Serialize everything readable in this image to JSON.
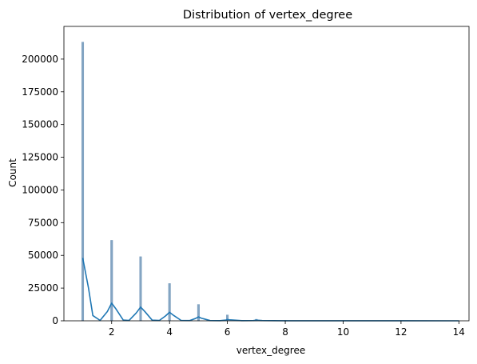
{
  "chart_data": {
    "type": "bar",
    "title": "Distribution of vertex_degree",
    "xlabel": "vertex_degree",
    "ylabel": "Count",
    "xlim": [
      0.35,
      14.35
    ],
    "ylim": [
      0,
      225000
    ],
    "xticks": [
      2,
      4,
      6,
      8,
      10,
      12,
      14
    ],
    "yticks": [
      0,
      25000,
      50000,
      75000,
      100000,
      125000,
      150000,
      175000,
      200000
    ],
    "grid": false,
    "legend": "none",
    "histogram": {
      "x": [
        1,
        2,
        3,
        4,
        5,
        6,
        7,
        8,
        9,
        10,
        11,
        12,
        13,
        14
      ],
      "values": [
        213000,
        61500,
        49000,
        28500,
        12500,
        4500,
        1200,
        300,
        100,
        60,
        40,
        20,
        10,
        5
      ],
      "color": "#6f95b8"
    },
    "kde": {
      "x": [
        1,
        1.2,
        1.35,
        1.6,
        1.85,
        2,
        2.15,
        2.4,
        2.6,
        2.85,
        3,
        3.15,
        3.4,
        3.65,
        3.85,
        4,
        4.15,
        4.4,
        4.7,
        4.9,
        5,
        5.1,
        5.4,
        5.75,
        5.95,
        6,
        6.1,
        6.5,
        6.9,
        7,
        7.2,
        8,
        10,
        12,
        14
      ],
      "y": [
        48000,
        25000,
        4000,
        300,
        7000,
        13500,
        9000,
        600,
        300,
        6000,
        10500,
        7000,
        500,
        300,
        3500,
        6500,
        4000,
        300,
        200,
        1800,
        3000,
        2000,
        200,
        100,
        600,
        1000,
        700,
        100,
        200,
        500,
        200,
        50,
        20,
        10,
        5
      ],
      "color": "#1f77b4"
    }
  }
}
